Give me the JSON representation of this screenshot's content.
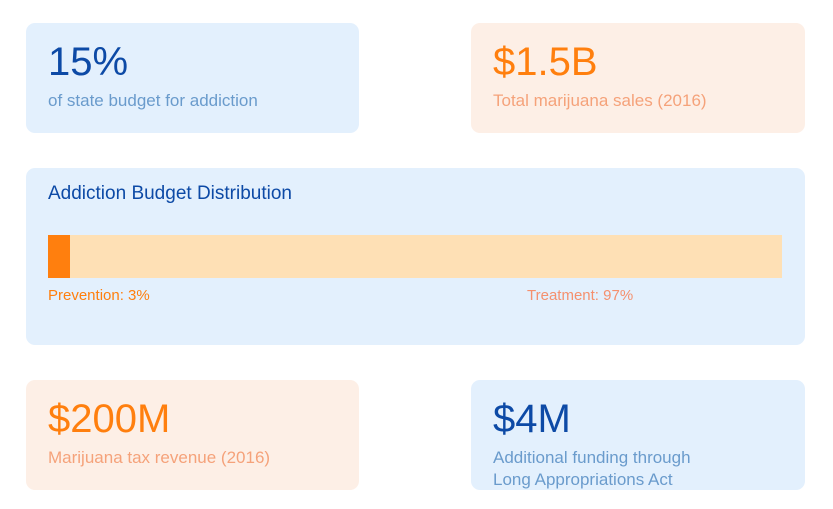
{
  "stats": {
    "budget": {
      "value": "15%",
      "label": "of state budget for addiction"
    },
    "sales": {
      "value": "$1.5B",
      "label": "Total marijuana sales (2016)"
    },
    "tax": {
      "value": "$200M",
      "label": "Marijuana tax revenue (2016)"
    },
    "funding": {
      "value": "$4M",
      "label_line1": "Additional funding through",
      "label_line2": "Long Appropriations Act"
    }
  },
  "distribution": {
    "title": "Addiction Budget Distribution",
    "prevention": {
      "label": "Prevention: 3%",
      "percent": 3
    },
    "treatment": {
      "label": "Treatment: 97%",
      "percent": 97
    }
  },
  "colors": {
    "navy": "#0d4aa6",
    "orange": "#ff7f0e",
    "blue_card": "#e3f0fd",
    "orange_card": "#fdefe6",
    "bar_track": "#fee0b5"
  }
}
